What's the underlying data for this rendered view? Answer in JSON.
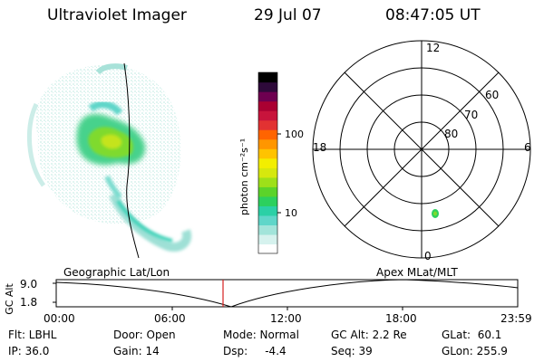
{
  "header": {
    "title": "Ultraviolet Imager",
    "date": "29 Jul 07",
    "time": "08:47:05 UT"
  },
  "left_panel": {
    "label": "Geographic Lat/Lon"
  },
  "right_panel": {
    "label": "Apex MLat/MLT",
    "mlt_labels": {
      "top": "12",
      "bottom": "0",
      "left": "18",
      "right": "6"
    },
    "lat_labels": [
      "60",
      "70",
      "80"
    ]
  },
  "colorbar": {
    "unit_label": "photon cm⁻²s⁻¹",
    "tick_labels": [
      "100",
      "10"
    ],
    "colors": [
      "#ffffff",
      "#d6f2ee",
      "#a2e4da",
      "#5fd6c9",
      "#2bd0a6",
      "#2cd05e",
      "#5bd32a",
      "#9ee019",
      "#d6e80e",
      "#f3ee00",
      "#ffc300",
      "#ff9600",
      "#ff6400",
      "#e23232",
      "#c8143c",
      "#aa0032",
      "#6e0050",
      "#2e0a3a",
      "#000000"
    ]
  },
  "altitude_plot": {
    "ylabel": "GC Alt",
    "yticks": [
      "9.0",
      "1.8"
    ],
    "xticks": [
      "00:00",
      "06:00",
      "12:00",
      "18:00",
      "23:59"
    ],
    "current_time_color": "#d62020"
  },
  "info": {
    "row1": {
      "flt": "Flt: LBHL",
      "door": "Door: Open",
      "mode": "Mode: Normal",
      "gc_alt": "GC Alt: 2.2 Re",
      "glat": "GLat:  60.1"
    },
    "row2": {
      "ip": "IP: 36.0",
      "gain": "Gain: 14",
      "dsp": "Dsp:     -4.4",
      "seq": "Seq: 39",
      "glon": "GLon: 255.9"
    }
  }
}
